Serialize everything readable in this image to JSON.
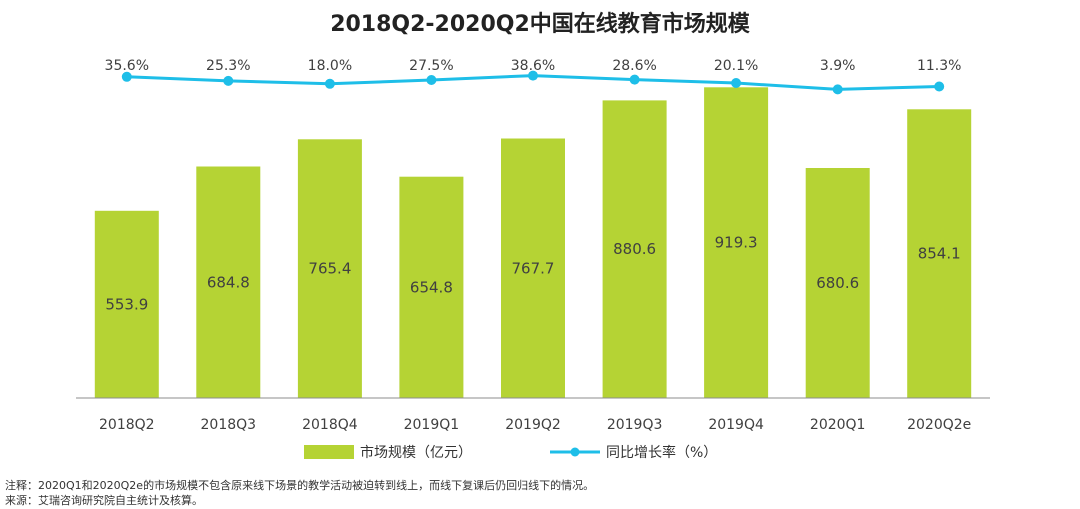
{
  "chart_data": {
    "type": "bar",
    "title": "2018Q2-2020Q2中国在线教育市场规模",
    "categories": [
      "2018Q2",
      "2018Q3",
      "2018Q4",
      "2019Q1",
      "2019Q2",
      "2019Q3",
      "2019Q4",
      "2020Q1",
      "2020Q2e"
    ],
    "series": [
      {
        "name": "市场规模（亿元）",
        "type": "bar",
        "values": [
          553.9,
          684.8,
          765.4,
          654.8,
          767.7,
          880.6,
          919.3,
          680.6,
          854.1
        ],
        "labels": [
          "553.9",
          "684.8",
          "765.4",
          "654.8",
          "767.7",
          "880.6",
          "919.3",
          "680.6",
          "854.1"
        ]
      },
      {
        "name": "同比增长率（%）",
        "type": "line",
        "values": [
          35.6,
          25.3,
          18.0,
          27.5,
          38.6,
          28.6,
          20.1,
          3.9,
          11.3
        ],
        "labels": [
          "35.6%",
          "25.3%",
          "18.0%",
          "27.5%",
          "38.6%",
          "28.6%",
          "20.1%",
          "3.9%",
          "11.3%"
        ]
      }
    ],
    "ylim": [
      0,
      1000
    ],
    "grid": false,
    "legend_position": "bottom-center",
    "colors": {
      "bar": "#B5D334",
      "line": "#1EBEE8",
      "axis": "#8C8C8C"
    }
  },
  "footnotes": {
    "note": "注释：2020Q1和2020Q2e的市场规模不包含原来线下场景的教学活动被迫转到线上，而线下复课后仍回归线下的情况。",
    "source": "来源：艾瑞咨询研究院自主统计及核算。"
  }
}
